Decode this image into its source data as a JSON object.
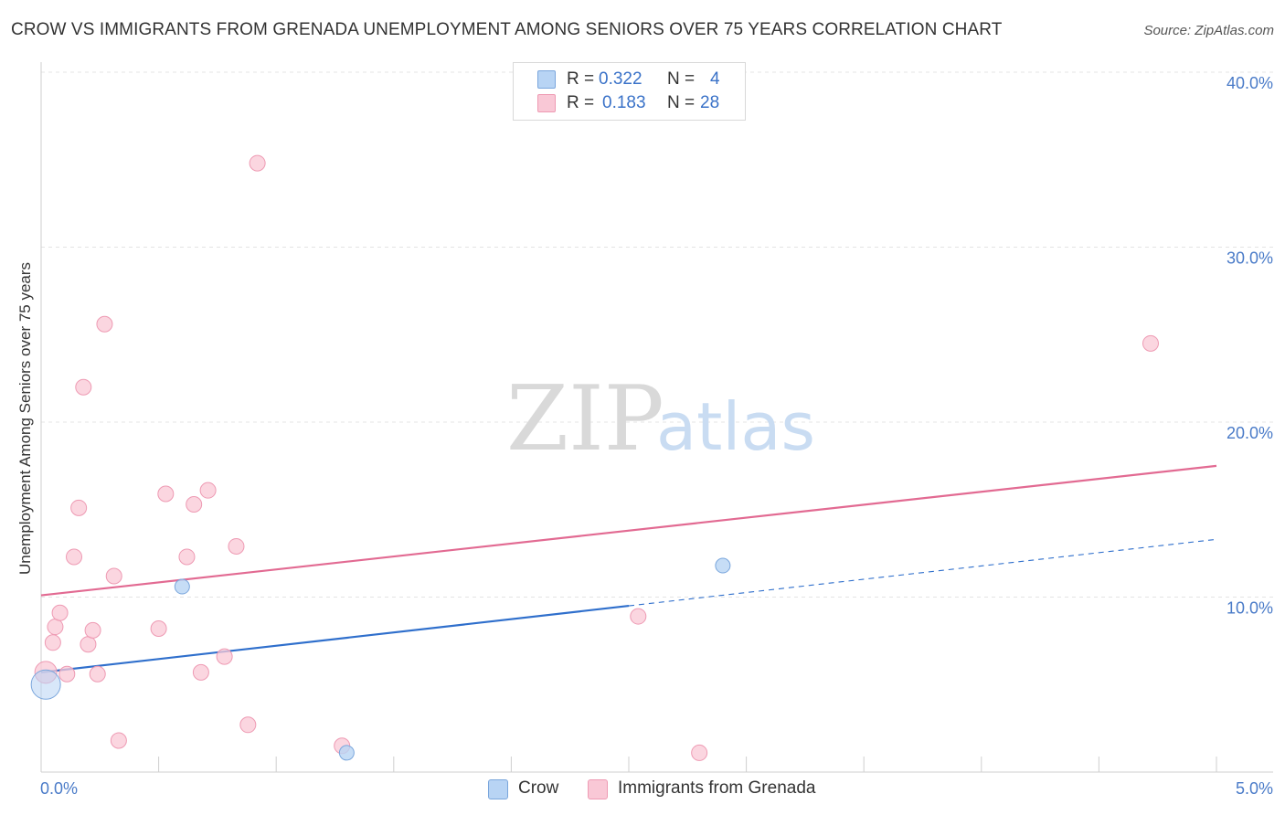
{
  "title": "CROW VS IMMIGRANTS FROM GRENADA UNEMPLOYMENT AMONG SENIORS OVER 75 YEARS CORRELATION CHART",
  "source": "Source: ZipAtlas.com",
  "watermark": {
    "zip": "ZIP",
    "atlas": "atlas"
  },
  "legend": {
    "rows": [
      {
        "r_label": "R =",
        "r_value": "0.322",
        "n_label": "N =",
        "n_value": "4"
      },
      {
        "r_label": "R =",
        "r_value": "0.183",
        "n_label": "N =",
        "n_value": "28"
      }
    ]
  },
  "colors": {
    "crow_fill": "#b8d4f4",
    "crow_stroke": "#7aa6dc",
    "crow_line": "#2f6fcc",
    "grenada_fill": "#f9c8d6",
    "grenada_stroke": "#ee9ab3",
    "grenada_line": "#e26a92",
    "tick_text": "#4a7bc8",
    "grid": "#e4e4e4"
  },
  "chart_data": {
    "type": "scatter",
    "title": "CROW VS IMMIGRANTS FROM GRENADA UNEMPLOYMENT AMONG SENIORS OVER 75 YEARS CORRELATION CHART",
    "xlabel": "",
    "ylabel": "Unemployment Among Seniors over 75 years",
    "xlim": [
      0,
      5
    ],
    "ylim": [
      0,
      40
    ],
    "x_tick_labels": [
      "0.0%",
      "5.0%"
    ],
    "y_ticks": [
      10,
      20,
      30,
      40
    ],
    "y_tick_labels": [
      "10.0%",
      "20.0%",
      "30.0%",
      "40.0%"
    ],
    "series": [
      {
        "name": "Crow",
        "R": 0.322,
        "N": 4,
        "points": [
          [
            0.02,
            5.0
          ],
          [
            0.6,
            10.6
          ],
          [
            2.9,
            11.8
          ],
          [
            1.3,
            1.1
          ]
        ],
        "trend": {
          "x0": 0.0,
          "y0": 5.7,
          "x1": 2.5,
          "y1": 9.5,
          "dash_to_x": 5.0,
          "dash_to_y": 13.3
        }
      },
      {
        "name": "Immigrants from Grenada",
        "R": 0.183,
        "N": 28,
        "points": [
          [
            0.02,
            5.7
          ],
          [
            0.05,
            7.4
          ],
          [
            0.06,
            8.3
          ],
          [
            0.08,
            9.1
          ],
          [
            0.11,
            5.6
          ],
          [
            0.14,
            12.3
          ],
          [
            0.16,
            15.1
          ],
          [
            0.18,
            22.0
          ],
          [
            0.2,
            7.3
          ],
          [
            0.22,
            8.1
          ],
          [
            0.24,
            5.6
          ],
          [
            0.27,
            25.6
          ],
          [
            0.31,
            11.2
          ],
          [
            0.33,
            1.8
          ],
          [
            0.5,
            8.2
          ],
          [
            0.53,
            15.9
          ],
          [
            0.62,
            12.3
          ],
          [
            0.65,
            15.3
          ],
          [
            0.68,
            5.7
          ],
          [
            0.71,
            16.1
          ],
          [
            0.78,
            6.6
          ],
          [
            0.83,
            12.9
          ],
          [
            0.88,
            2.7
          ],
          [
            0.92,
            34.8
          ],
          [
            1.28,
            1.5
          ],
          [
            2.54,
            8.9
          ],
          [
            2.8,
            1.1
          ],
          [
            4.72,
            24.5
          ]
        ],
        "trend": {
          "x0": 0.0,
          "y0": 10.1,
          "x1": 5.0,
          "y1": 17.5
        }
      }
    ]
  },
  "bottom_legend": {
    "crow": "Crow",
    "grenada": "Immigrants from Grenada"
  }
}
